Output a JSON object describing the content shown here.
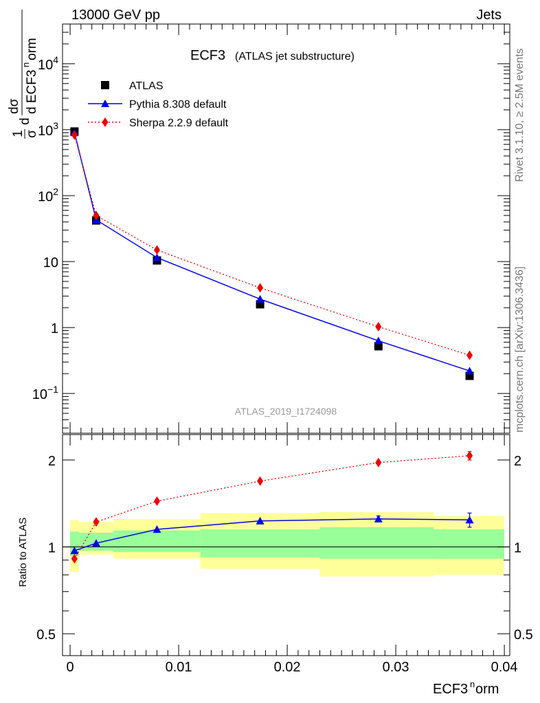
{
  "header": {
    "energy_label": "13000 GeV pp",
    "process_label": "Jets",
    "analysis_id": "ATLAS_2019_I1724098",
    "side_rivet": "Rivet 3.1.10, ≥ 2.5M events",
    "side_mcplots": "mcplots.cern.ch [arXiv:1306.3436]"
  },
  "chart_data": [
    {
      "type": "scatter",
      "title": "ECF3",
      "subtitle": "(ATLAS jet substructure)",
      "ylabel": "1/σ dσ/d ECF3norm",
      "yscale": "log",
      "xlim": [
        -0.0007,
        0.0405
      ],
      "ylim": [
        0.025,
        40000
      ],
      "yticks": [
        "10⁻¹",
        "1",
        "10",
        "10²",
        "10³",
        "10⁴"
      ],
      "ytick_values": [
        0.1,
        1,
        10,
        100,
        1000,
        10000
      ],
      "legend_position": "top-left",
      "series": [
        {
          "name": "ATLAS",
          "color": "#000000",
          "marker": "square",
          "x": [
            0.0004,
            0.0024,
            0.008,
            0.0175,
            0.0284,
            0.0368
          ],
          "y": [
            940,
            42,
            10.4,
            2.25,
            0.52,
            0.185
          ]
        },
        {
          "name": "Pythia 8.308 default",
          "color": "#0000ee",
          "marker": "triangle",
          "line": "solid",
          "x": [
            0.0004,
            0.0024,
            0.008,
            0.0175,
            0.0284,
            0.0368
          ],
          "y": [
            900,
            43,
            11.5,
            2.7,
            0.63,
            0.22
          ]
        },
        {
          "name": "Sherpa 2.2.9 default",
          "color": "#ee0000",
          "marker": "diamond",
          "line": "dotted",
          "x": [
            0.0004,
            0.0024,
            0.008,
            0.0175,
            0.0284,
            0.0368
          ],
          "y": [
            830,
            50,
            15,
            4.0,
            1.03,
            0.38
          ]
        }
      ]
    },
    {
      "type": "scatter",
      "ylabel": "Ratio to ATLAS",
      "xlabel": "ECF3norm",
      "yscale": "log",
      "xlim": [
        -0.0007,
        0.0405
      ],
      "ylim": [
        0.42,
        2.45
      ],
      "xticks": [
        "0",
        "0.01",
        "0.02",
        "0.03",
        "0.04"
      ],
      "xtick_values": [
        0,
        0.01,
        0.02,
        0.03,
        0.04
      ],
      "yticks": [
        "0.5",
        "1",
        "2"
      ],
      "ytick_values": [
        0.5,
        1,
        2
      ],
      "reference_line": 1,
      "bands": {
        "bin_edges": [
          0,
          0.0008,
          0.004,
          0.012,
          0.023,
          0.0335,
          0.04
        ],
        "inner_low": [
          0.93,
          0.97,
          0.96,
          0.92,
          0.91,
          0.91
        ],
        "inner_high": [
          1.13,
          1.12,
          1.14,
          1.15,
          1.17,
          1.15
        ],
        "outer_low": [
          0.82,
          0.94,
          0.91,
          0.84,
          0.79,
          0.8
        ],
        "outer_high": [
          1.24,
          1.22,
          1.25,
          1.31,
          1.32,
          1.28
        ],
        "inner_color": "#99ff99",
        "outer_color": "#ffff99"
      },
      "series": [
        {
          "name": "Pythia 8.308 default",
          "color": "#0000ee",
          "marker": "triangle",
          "line": "solid",
          "x": [
            0.0004,
            0.0024,
            0.008,
            0.0175,
            0.0284,
            0.0368
          ],
          "y": [
            0.97,
            1.03,
            1.15,
            1.23,
            1.25,
            1.24
          ],
          "err": [
            0.01,
            0.01,
            0.01,
            0.01,
            0.03,
            0.07
          ]
        },
        {
          "name": "Sherpa 2.2.9 default",
          "color": "#ee0000",
          "marker": "diamond",
          "line": "dotted",
          "x": [
            0.0004,
            0.0024,
            0.008,
            0.0175,
            0.0284,
            0.0368
          ],
          "y": [
            0.91,
            1.22,
            1.44,
            1.69,
            1.96,
            2.07
          ],
          "err": [
            0.01,
            0.01,
            0.01,
            0.01,
            0.02,
            0.07
          ]
        }
      ]
    }
  ]
}
